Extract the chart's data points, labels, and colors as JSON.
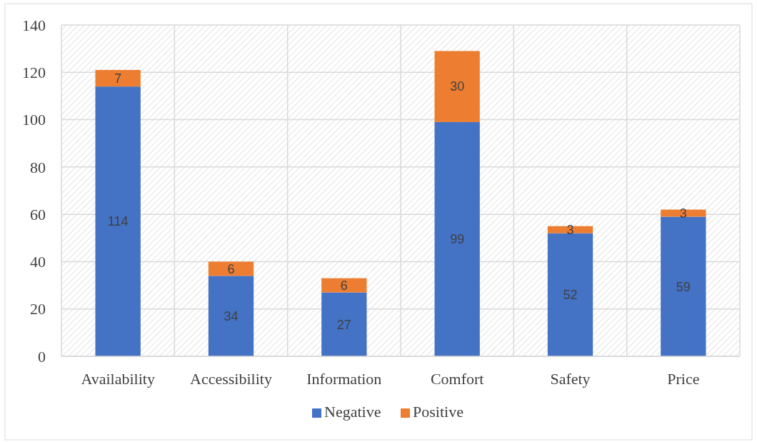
{
  "chart_data": {
    "type": "bar",
    "stacked": true,
    "categories": [
      "Availability",
      "Accessibility",
      "Information",
      "Comfort",
      "Safety",
      "Price"
    ],
    "series": [
      {
        "name": "Negative",
        "color": "#4472c4",
        "values": [
          114,
          34,
          27,
          99,
          52,
          59
        ]
      },
      {
        "name": "Positive",
        "color": "#ed7d31",
        "values": [
          7,
          6,
          6,
          30,
          3,
          3
        ]
      }
    ],
    "ylim": [
      0,
      140
    ],
    "yticks": [
      0,
      20,
      40,
      60,
      80,
      100,
      120,
      140
    ],
    "grid": true,
    "legend": "bottom",
    "data_labels": true
  }
}
